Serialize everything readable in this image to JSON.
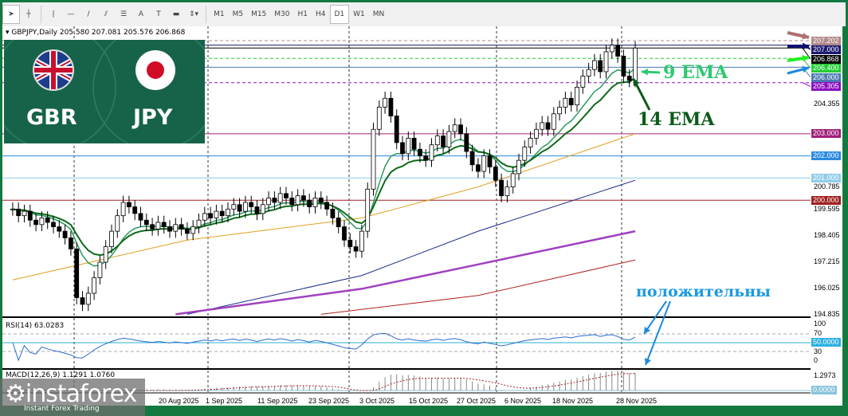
{
  "toolbar": {
    "tools": [
      {
        "name": "cursor-icon",
        "g": "➤"
      },
      {
        "name": "crosshair-icon",
        "g": "┼"
      },
      {
        "name": "vertical-line-icon",
        "g": "|"
      },
      {
        "name": "horizontal-line-icon",
        "g": "—"
      },
      {
        "name": "trendline-icon",
        "g": "/"
      },
      {
        "name": "fibonacci-fan-icon",
        "g": "⫽"
      },
      {
        "name": "fibonacci-retracement-icon",
        "g": "☰"
      },
      {
        "name": "text-icon",
        "g": "A"
      },
      {
        "name": "text-label-icon",
        "g": "T"
      },
      {
        "name": "rectangle-icon",
        "g": "▬"
      },
      {
        "name": "arrows-dropdown-icon",
        "g": "⇕▾"
      }
    ],
    "timeframes": [
      "M1",
      "M5",
      "M15",
      "M30",
      "H1",
      "H4",
      "D1",
      "W1",
      "MN"
    ],
    "selected_timeframe": "D1"
  },
  "chart": {
    "symbol_info": "GBPJPY,Daily  205.580 207.081 205.576 206.868",
    "pair_left": "GBR",
    "pair_right": "JPY",
    "closes": [
      199.6,
      199.3,
      199.5,
      199.1,
      198.9,
      199.2,
      199.0,
      198.8,
      198.6,
      198.3,
      197.8,
      195.6,
      195.3,
      195.8,
      196.5,
      197.2,
      197.9,
      198.6,
      199.3,
      199.9,
      199.7,
      199.4,
      199.1,
      198.9,
      198.7,
      199.0,
      198.8,
      198.6,
      198.9,
      198.7,
      198.5,
      198.8,
      199.1,
      199.4,
      199.2,
      199.5,
      199.3,
      199.6,
      199.8,
      199.5,
      199.9,
      199.7,
      199.4,
      199.8,
      200.1,
      199.9,
      200.3,
      200.1,
      199.8,
      200.2,
      200.0,
      199.7,
      200.1,
      199.9,
      199.6,
      199.2,
      198.8,
      198.2,
      197.9,
      197.7,
      198.6,
      200.5,
      203.2,
      204.2,
      204.6,
      203.8,
      202.6,
      202.1,
      202.8,
      202.3,
      202.0,
      201.8,
      202.5,
      202.9,
      202.4,
      203.1,
      203.4,
      203.0,
      202.2,
      201.6,
      201.3,
      202.0,
      201.5,
      200.9,
      200.2,
      200.6,
      201.2,
      201.8,
      202.4,
      202.8,
      203.2,
      203.5,
      203.2,
      203.9,
      204.2,
      204.6,
      204.3,
      205.1,
      205.6,
      205.9,
      206.3,
      205.8,
      206.7,
      207.0,
      206.5,
      205.6,
      205.4,
      206.868
    ],
    "ma_lines": [
      {
        "color": "#e0a020",
        "points": [
          [
            0,
            196.4
          ],
          [
            30,
            198.2
          ],
          [
            60,
            199.2
          ],
          [
            80,
            200.6
          ],
          [
            107,
            203.0
          ]
        ]
      },
      {
        "color": "#1a2a8a",
        "points": [
          [
            30,
            194.85
          ],
          [
            60,
            196.6
          ],
          [
            80,
            198.6
          ],
          [
            107,
            200.9
          ]
        ]
      },
      {
        "color": "#a040c0",
        "points": [
          [
            28,
            194.85
          ],
          [
            60,
            196.0
          ],
          [
            80,
            197.1
          ],
          [
            107,
            198.6
          ]
        ]
      },
      {
        "color": "#b02020",
        "points": [
          [
            53,
            194.85
          ],
          [
            80,
            195.7
          ],
          [
            107,
            197.3
          ]
        ]
      }
    ],
    "ema_fast": {
      "period": 9,
      "color": "#2a9a60"
    },
    "ema_slow": {
      "period": 14,
      "color": "#0d6a1a"
    },
    "levels": [
      {
        "price": "207.202",
        "color": "#b08a8a",
        "dash": true
      },
      {
        "price": "207.000",
        "color": "#1a1a70",
        "dash": false
      },
      {
        "price": "206.868",
        "color": "#000000",
        "dash": false
      },
      {
        "price": "206.400",
        "color": "#22cc33",
        "dash": true
      },
      {
        "price": "206.000",
        "color": "#4a7ab0",
        "dash": false
      },
      {
        "price": "205.305",
        "color": "#8a10c0",
        "dash": true
      },
      {
        "price": "203.000",
        "color": "#a0207a",
        "dash": false
      },
      {
        "price": "202.000",
        "color": "#2a8ae0",
        "dash": false
      },
      {
        "price": "201.000",
        "color": "#90cce8",
        "dash": false
      },
      {
        "price": "200.000",
        "color": "#a02020",
        "dash": false
      }
    ],
    "ticks": [
      "204.355",
      "200.785",
      "199.595",
      "198.405",
      "197.215",
      "196.025",
      "194.835"
    ],
    "annotations": {
      "ema9": "9 EMA",
      "ema14": "14 EMA",
      "positive": "положительны"
    }
  },
  "rsi": {
    "label": "RSI(14) 63.0283",
    "levels": [
      "100",
      "70",
      "50.0000",
      "30",
      "0"
    ]
  },
  "macd": {
    "label": "MACD(12,26,9) 1.1291 1.0760",
    "levels": [
      "1.2973",
      "0.0000"
    ]
  },
  "dates": [
    "20 Aug 2025",
    "1 Sep 2025",
    "11 Sep 2025",
    "23 Sep 2025",
    "3 Oct 2025",
    "15 Oct 2025",
    "27 Oct 2025",
    "6 Nov 2025",
    "18 Nov 2025",
    "28 Nov 2025"
  ],
  "watermark": {
    "brand": "instaforex",
    "tagline": "Instant Forex Trading"
  }
}
